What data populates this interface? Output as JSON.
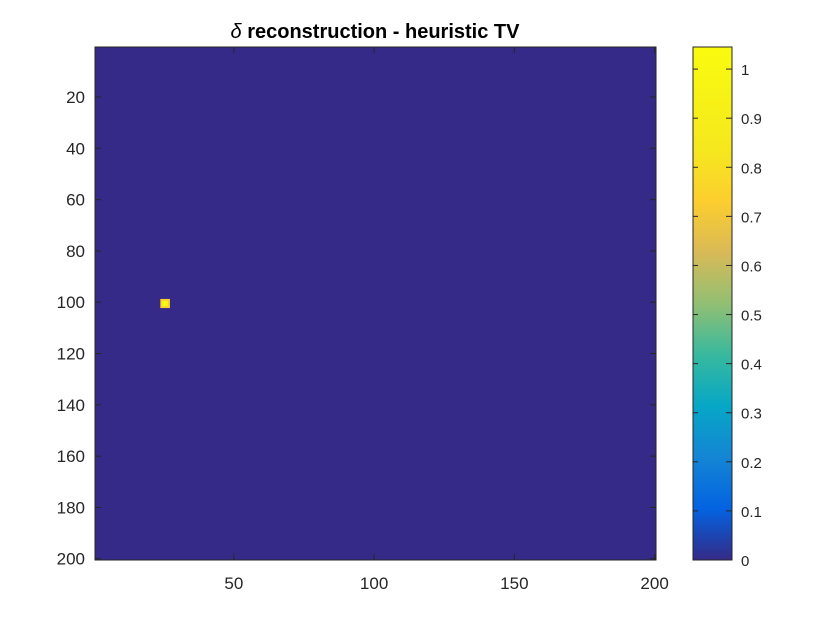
{
  "chart_data": {
    "type": "heatmap",
    "title_symbol": "δ",
    "title_text": " reconstruction - heuristic TV",
    "colormap": "parula",
    "x_range": [
      1,
      200
    ],
    "y_range": [
      1,
      200
    ],
    "y_reversed": true,
    "x_ticks": [
      50,
      100,
      150,
      200
    ],
    "y_ticks": [
      20,
      40,
      60,
      80,
      100,
      120,
      140,
      160,
      180,
      200
    ],
    "background_value": 0,
    "spikes": [
      {
        "x": 25,
        "y": 100,
        "value": 1.03
      }
    ],
    "colorbar": {
      "range": [
        0,
        1.045
      ],
      "ticks": [
        0,
        0.1,
        0.2,
        0.3,
        0.4,
        0.5,
        0.6,
        0.7,
        0.8,
        0.9,
        1
      ]
    },
    "colors": {
      "background_cell": "#352a87",
      "spike_cell": "#f9fb0e"
    }
  }
}
